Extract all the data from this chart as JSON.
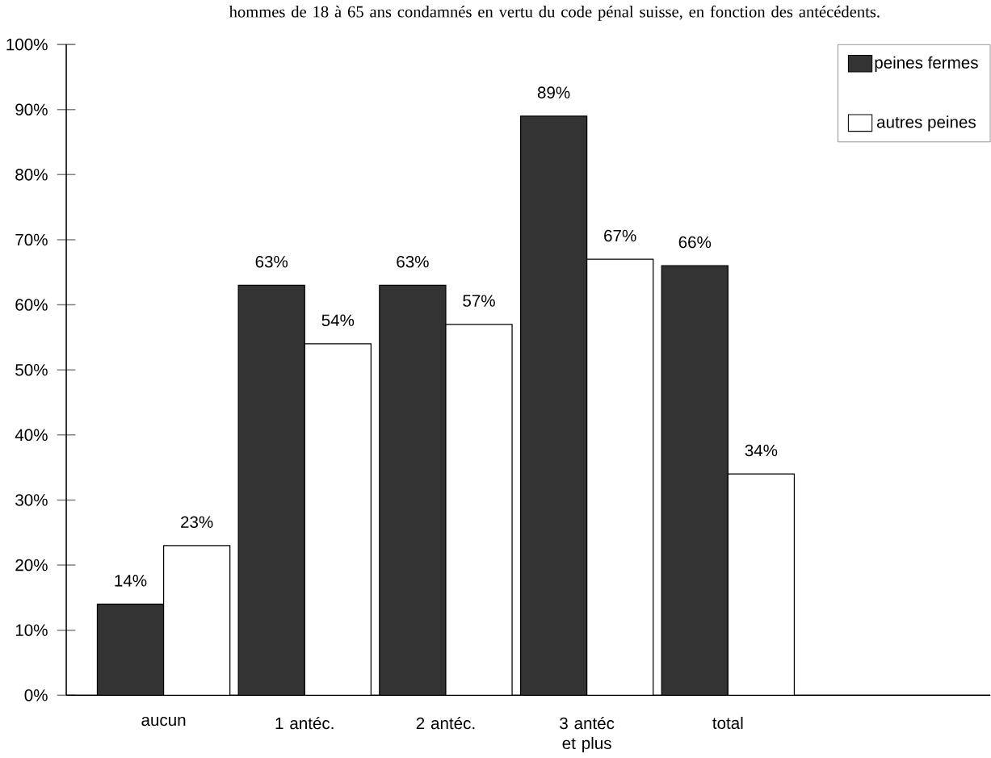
{
  "chart_data": {
    "type": "bar",
    "title": "hommes de 18 à 65 ans condamnés en vertu du code pénal suisse, en fonction des antécédents.",
    "categories": [
      "aucun",
      "1 antéc.",
      "2 antéc.",
      "3 antéc et plus",
      "total"
    ],
    "series": [
      {
        "name": "peines fermes",
        "color": "#333333",
        "values": [
          14,
          63,
          63,
          89,
          66
        ],
        "value_labels": [
          "14%",
          "63%",
          "63%",
          "89%",
          "66%"
        ]
      },
      {
        "name": "autres peines",
        "color": "#ffffff",
        "values": [
          23,
          54,
          57,
          67,
          34
        ],
        "value_labels": [
          "23%",
          "54%",
          "57%",
          "67%",
          "34%"
        ]
      }
    ],
    "ylim": [
      0,
      100
    ],
    "yticks": [
      {
        "value": 0,
        "label": "0%"
      },
      {
        "value": 10,
        "label": "10%"
      },
      {
        "value": 20,
        "label": "20%"
      },
      {
        "value": 30,
        "label": "30%"
      },
      {
        "value": 40,
        "label": "40%"
      },
      {
        "value": 50,
        "label": "50%"
      },
      {
        "value": 60,
        "label": "60%"
      },
      {
        "value": 70,
        "label": "70%"
      },
      {
        "value": 80,
        "label": "80%"
      },
      {
        "value": 90,
        "label": "90%"
      },
      {
        "value": 100,
        "label": "100%"
      }
    ],
    "legend": "top right"
  }
}
